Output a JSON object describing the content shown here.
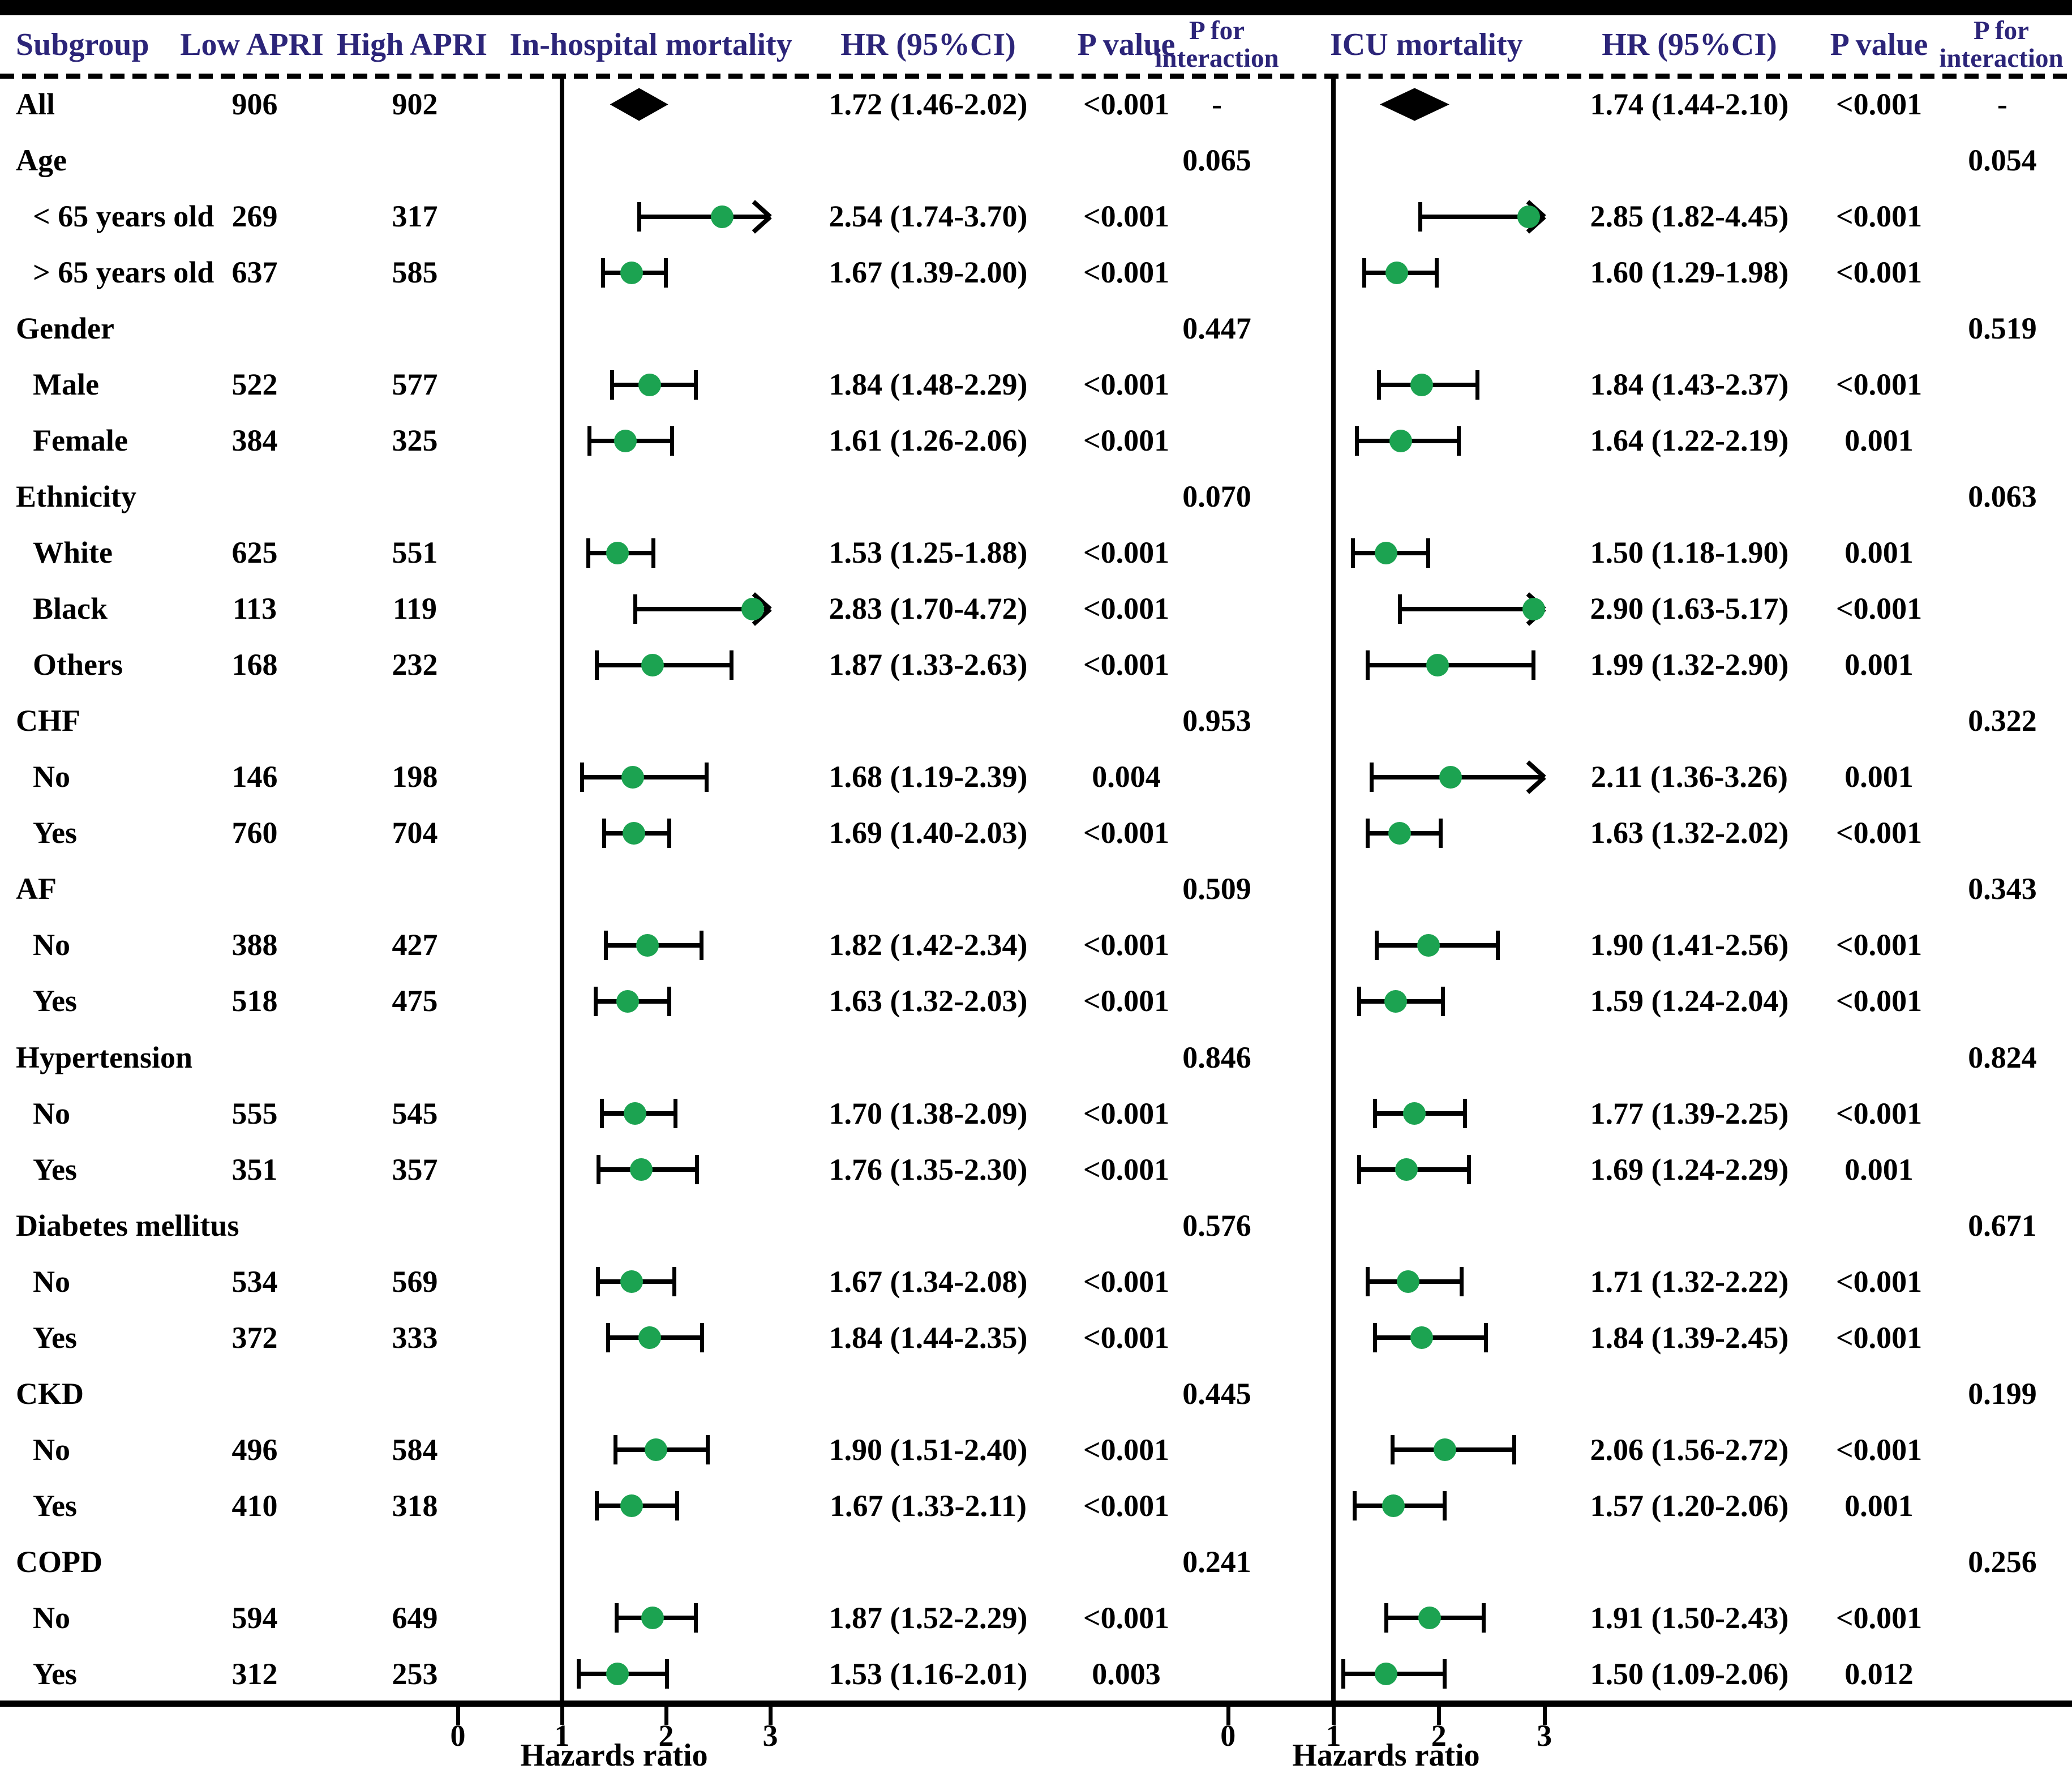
{
  "header": {
    "subgroup": "Subgroup",
    "low_apri": "Low APRI",
    "high_apri": "High APRI",
    "inhospital": "In-hospital mortality",
    "hr_ci": "HR (95%CI)",
    "p_value": "P value",
    "p_for": "P for",
    "interaction": "interaction",
    "icu": "ICU mortality"
  },
  "axis": {
    "label": "Hazards ratio",
    "ticks": [
      0,
      1,
      2,
      3
    ]
  },
  "colors": {
    "header_text": "#2c2579",
    "marker_green": "#1ca351",
    "text": "#000000"
  },
  "chart_data": {
    "type": "forest",
    "x_axis": {
      "ticks": [
        0,
        1,
        2,
        3
      ],
      "label": "Hazards ratio",
      "reference_line": 1,
      "clip_max": 3
    },
    "panels": [
      {
        "name": "In-hospital mortality",
        "key": "inhospital"
      },
      {
        "name": "ICU mortality",
        "key": "icu"
      }
    ],
    "rows": [
      {
        "label": "All",
        "category": false,
        "indent": false,
        "low_apri": "906",
        "high_apri": "902",
        "inhospital": {
          "marker": "diamond",
          "est": 1.72,
          "lo": 1.46,
          "hi": 2.02,
          "hr_text": "1.72 (1.46-2.02)",
          "p": "<0.001"
        },
        "p_int_inhospital": "-",
        "icu": {
          "marker": "diamond",
          "est": 1.74,
          "lo": 1.44,
          "hi": 2.1,
          "hr_text": "1.74 (1.44-2.10)",
          "p": "<0.001"
        },
        "p_int_icu": "-"
      },
      {
        "label": "Age",
        "category": true,
        "p_int_inhospital": "0.065",
        "p_int_icu": "0.054"
      },
      {
        "label": "< 65 years old",
        "category": false,
        "indent": true,
        "low_apri": "269",
        "high_apri": "317",
        "inhospital": {
          "marker": "circle",
          "est": 2.54,
          "lo": 1.74,
          "hi": 3.7,
          "hr_text": "2.54 (1.74-3.70)",
          "p": "<0.001"
        },
        "icu": {
          "marker": "circle",
          "est": 2.85,
          "lo": 1.82,
          "hi": 4.45,
          "hr_text": "2.85 (1.82-4.45)",
          "p": "<0.001"
        }
      },
      {
        "label": "> 65 years old",
        "category": false,
        "indent": true,
        "low_apri": "637",
        "high_apri": "585",
        "inhospital": {
          "marker": "circle",
          "est": 1.67,
          "lo": 1.39,
          "hi": 2.0,
          "hr_text": "1.67 (1.39-2.00)",
          "p": "<0.001"
        },
        "icu": {
          "marker": "circle",
          "est": 1.6,
          "lo": 1.29,
          "hi": 1.98,
          "hr_text": "1.60 (1.29-1.98)",
          "p": "<0.001"
        }
      },
      {
        "label": "Gender",
        "category": true,
        "p_int_inhospital": "0.447",
        "p_int_icu": "0.519"
      },
      {
        "label": "Male",
        "category": false,
        "indent": true,
        "low_apri": "522",
        "high_apri": "577",
        "inhospital": {
          "marker": "circle",
          "est": 1.84,
          "lo": 1.48,
          "hi": 2.29,
          "hr_text": "1.84 (1.48-2.29)",
          "p": "<0.001"
        },
        "icu": {
          "marker": "circle",
          "est": 1.84,
          "lo": 1.43,
          "hi": 2.37,
          "hr_text": "1.84 (1.43-2.37)",
          "p": "<0.001"
        }
      },
      {
        "label": "Female",
        "category": false,
        "indent": true,
        "low_apri": "384",
        "high_apri": "325",
        "inhospital": {
          "marker": "circle",
          "est": 1.61,
          "lo": 1.26,
          "hi": 2.06,
          "hr_text": "1.61 (1.26-2.06)",
          "p": "<0.001"
        },
        "icu": {
          "marker": "circle",
          "est": 1.64,
          "lo": 1.22,
          "hi": 2.19,
          "hr_text": "1.64 (1.22-2.19)",
          "p": "0.001"
        }
      },
      {
        "label": "Ethnicity",
        "category": true,
        "p_int_inhospital": "0.070",
        "p_int_icu": "0.063"
      },
      {
        "label": "White",
        "category": false,
        "indent": true,
        "low_apri": "625",
        "high_apri": "551",
        "inhospital": {
          "marker": "circle",
          "est": 1.53,
          "lo": 1.25,
          "hi": 1.88,
          "hr_text": "1.53 (1.25-1.88)",
          "p": "<0.001"
        },
        "icu": {
          "marker": "circle",
          "est": 1.5,
          "lo": 1.18,
          "hi": 1.9,
          "hr_text": "1.50 (1.18-1.90)",
          "p": "0.001"
        }
      },
      {
        "label": "Black",
        "category": false,
        "indent": true,
        "low_apri": "113",
        "high_apri": "119",
        "inhospital": {
          "marker": "circle",
          "est": 2.83,
          "lo": 1.7,
          "hi": 4.72,
          "hr_text": "2.83 (1.70-4.72)",
          "p": "<0.001"
        },
        "icu": {
          "marker": "circle",
          "est": 2.9,
          "lo": 1.63,
          "hi": 5.17,
          "hr_text": "2.90 (1.63-5.17)",
          "p": "<0.001"
        }
      },
      {
        "label": "Others",
        "category": false,
        "indent": true,
        "low_apri": "168",
        "high_apri": "232",
        "inhospital": {
          "marker": "circle",
          "est": 1.87,
          "lo": 1.33,
          "hi": 2.63,
          "hr_text": "1.87 (1.33-2.63)",
          "p": "<0.001"
        },
        "icu": {
          "marker": "circle",
          "est": 1.99,
          "lo": 1.32,
          "hi": 2.9,
          "hr_text": "1.99 (1.32-2.90)",
          "p": "0.001"
        }
      },
      {
        "label": "CHF",
        "category": true,
        "p_int_inhospital": "0.953",
        "p_int_icu": "0.322"
      },
      {
        "label": "No",
        "category": false,
        "indent": true,
        "low_apri": "146",
        "high_apri": "198",
        "inhospital": {
          "marker": "circle",
          "est": 1.68,
          "lo": 1.19,
          "hi": 2.39,
          "hr_text": "1.68 (1.19-2.39)",
          "p": "0.004"
        },
        "icu": {
          "marker": "circle",
          "est": 2.11,
          "lo": 1.36,
          "hi": 3.26,
          "hr_text": "2.11 (1.36-3.26)",
          "p": "0.001"
        }
      },
      {
        "label": "Yes",
        "category": false,
        "indent": true,
        "low_apri": "760",
        "high_apri": "704",
        "inhospital": {
          "marker": "circle",
          "est": 1.69,
          "lo": 1.4,
          "hi": 2.03,
          "hr_text": "1.69 (1.40-2.03)",
          "p": "<0.001"
        },
        "icu": {
          "marker": "circle",
          "est": 1.63,
          "lo": 1.32,
          "hi": 2.02,
          "hr_text": "1.63 (1.32-2.02)",
          "p": "<0.001"
        }
      },
      {
        "label": "AF",
        "category": true,
        "p_int_inhospital": "0.509",
        "p_int_icu": "0.343"
      },
      {
        "label": "No",
        "category": false,
        "indent": true,
        "low_apri": "388",
        "high_apri": "427",
        "inhospital": {
          "marker": "circle",
          "est": 1.82,
          "lo": 1.42,
          "hi": 2.34,
          "hr_text": "1.82 (1.42-2.34)",
          "p": "<0.001"
        },
        "icu": {
          "marker": "circle",
          "est": 1.9,
          "lo": 1.41,
          "hi": 2.56,
          "hr_text": "1.90 (1.41-2.56)",
          "p": "<0.001"
        }
      },
      {
        "label": "Yes",
        "category": false,
        "indent": true,
        "low_apri": "518",
        "high_apri": "475",
        "inhospital": {
          "marker": "circle",
          "est": 1.63,
          "lo": 1.32,
          "hi": 2.03,
          "hr_text": "1.63 (1.32-2.03)",
          "p": "<0.001"
        },
        "icu": {
          "marker": "circle",
          "est": 1.59,
          "lo": 1.24,
          "hi": 2.04,
          "hr_text": "1.59 (1.24-2.04)",
          "p": "<0.001"
        }
      },
      {
        "label": "Hypertension",
        "category": true,
        "p_int_inhospital": "0.846",
        "p_int_icu": "0.824"
      },
      {
        "label": "No",
        "category": false,
        "indent": true,
        "low_apri": "555",
        "high_apri": "545",
        "inhospital": {
          "marker": "circle",
          "est": 1.7,
          "lo": 1.38,
          "hi": 2.09,
          "hr_text": "1.70 (1.38-2.09)",
          "p": "<0.001"
        },
        "icu": {
          "marker": "circle",
          "est": 1.77,
          "lo": 1.39,
          "hi": 2.25,
          "hr_text": "1.77 (1.39-2.25)",
          "p": "<0.001"
        }
      },
      {
        "label": "Yes",
        "category": false,
        "indent": true,
        "low_apri": "351",
        "high_apri": "357",
        "inhospital": {
          "marker": "circle",
          "est": 1.76,
          "lo": 1.35,
          "hi": 2.3,
          "hr_text": "1.76 (1.35-2.30)",
          "p": "<0.001"
        },
        "icu": {
          "marker": "circle",
          "est": 1.69,
          "lo": 1.24,
          "hi": 2.29,
          "hr_text": "1.69 (1.24-2.29)",
          "p": "0.001"
        }
      },
      {
        "label": "Diabetes mellitus",
        "category": true,
        "p_int_inhospital": "0.576",
        "p_int_icu": "0.671"
      },
      {
        "label": "No",
        "category": false,
        "indent": true,
        "low_apri": "534",
        "high_apri": "569",
        "inhospital": {
          "marker": "circle",
          "est": 1.67,
          "lo": 1.34,
          "hi": 2.08,
          "hr_text": "1.67 (1.34-2.08)",
          "p": "<0.001"
        },
        "icu": {
          "marker": "circle",
          "est": 1.71,
          "lo": 1.32,
          "hi": 2.22,
          "hr_text": "1.71 (1.32-2.22)",
          "p": "<0.001"
        }
      },
      {
        "label": "Yes",
        "category": false,
        "indent": true,
        "low_apri": "372",
        "high_apri": "333",
        "inhospital": {
          "marker": "circle",
          "est": 1.84,
          "lo": 1.44,
          "hi": 2.35,
          "hr_text": "1.84 (1.44-2.35)",
          "p": "<0.001"
        },
        "icu": {
          "marker": "circle",
          "est": 1.84,
          "lo": 1.39,
          "hi": 2.45,
          "hr_text": "1.84 (1.39-2.45)",
          "p": "<0.001"
        }
      },
      {
        "label": "CKD",
        "category": true,
        "p_int_inhospital": "0.445",
        "p_int_icu": "0.199"
      },
      {
        "label": "No",
        "category": false,
        "indent": true,
        "low_apri": "496",
        "high_apri": "584",
        "inhospital": {
          "marker": "circle",
          "est": 1.9,
          "lo": 1.51,
          "hi": 2.4,
          "hr_text": "1.90 (1.51-2.40)",
          "p": "<0.001"
        },
        "icu": {
          "marker": "circle",
          "est": 2.06,
          "lo": 1.56,
          "hi": 2.72,
          "hr_text": "2.06 (1.56-2.72)",
          "p": "<0.001"
        }
      },
      {
        "label": "Yes",
        "category": false,
        "indent": true,
        "low_apri": "410",
        "high_apri": "318",
        "inhospital": {
          "marker": "circle",
          "est": 1.67,
          "lo": 1.33,
          "hi": 2.11,
          "hr_text": "1.67 (1.33-2.11)",
          "p": "<0.001"
        },
        "icu": {
          "marker": "circle",
          "est": 1.57,
          "lo": 1.2,
          "hi": 2.06,
          "hr_text": "1.57 (1.20-2.06)",
          "p": "0.001"
        }
      },
      {
        "label": "COPD",
        "category": true,
        "p_int_inhospital": "0.241",
        "p_int_icu": "0.256"
      },
      {
        "label": "No",
        "category": false,
        "indent": true,
        "low_apri": "594",
        "high_apri": "649",
        "inhospital": {
          "marker": "circle",
          "est": 1.87,
          "lo": 1.52,
          "hi": 2.29,
          "hr_text": "1.87 (1.52-2.29)",
          "p": "<0.001"
        },
        "icu": {
          "marker": "circle",
          "est": 1.91,
          "lo": 1.5,
          "hi": 2.43,
          "hr_text": "1.91 (1.50-2.43)",
          "p": "<0.001"
        }
      },
      {
        "label": "Yes",
        "category": false,
        "indent": true,
        "low_apri": "312",
        "high_apri": "253",
        "inhospital": {
          "marker": "circle",
          "est": 1.53,
          "lo": 1.16,
          "hi": 2.01,
          "hr_text": "1.53 (1.16-2.01)",
          "p": "0.003"
        },
        "icu": {
          "marker": "circle",
          "est": 1.5,
          "lo": 1.09,
          "hi": 2.06,
          "hr_text": "1.50 (1.09-2.06)",
          "p": "0.012"
        }
      }
    ]
  }
}
